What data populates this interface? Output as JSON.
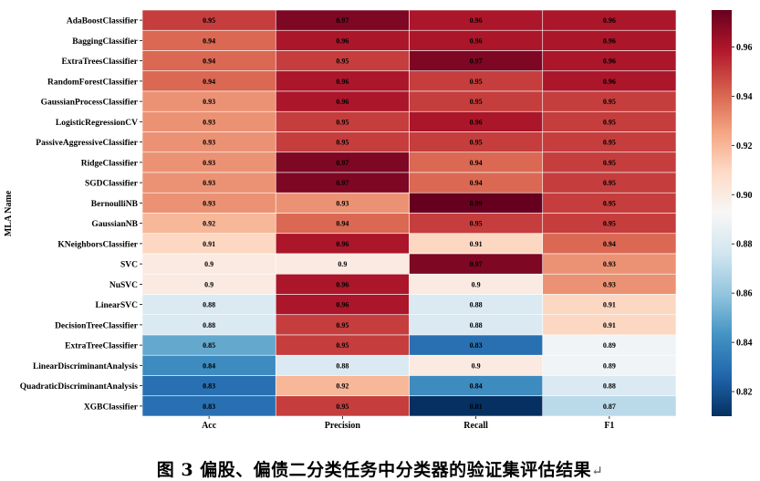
{
  "chart_data": {
    "type": "heatmap",
    "ylabel": "MLA Name",
    "xlabel": "",
    "columns": [
      "Acc",
      "Precision",
      "Recall",
      "F1"
    ],
    "rows": [
      "AdaBoostClassifier",
      "BaggingClassifier",
      "ExtraTreesClassifier",
      "RandomForestClassifier",
      "GaussianProcessClassifier",
      "LogisticRegressionCV",
      "PassiveAggressiveClassifier",
      "RidgeClassifier",
      "SGDClassifier",
      "BernoulliNB",
      "GaussianNB",
      "KNeighborsClassifier",
      "SVC",
      "NuSVC",
      "LinearSVC",
      "DecisionTreeClassifier",
      "ExtraTreeClassifier",
      "LinearDiscriminantAnalysis",
      "QuadraticDiscriminantAnalysis",
      "XGBClassifier"
    ],
    "values": [
      [
        0.95,
        0.97,
        0.96,
        0.96
      ],
      [
        0.94,
        0.96,
        0.96,
        0.96
      ],
      [
        0.94,
        0.95,
        0.97,
        0.96
      ],
      [
        0.94,
        0.96,
        0.95,
        0.96
      ],
      [
        0.93,
        0.96,
        0.95,
        0.95
      ],
      [
        0.93,
        0.95,
        0.96,
        0.95
      ],
      [
        0.93,
        0.95,
        0.95,
        0.95
      ],
      [
        0.93,
        0.97,
        0.94,
        0.95
      ],
      [
        0.93,
        0.97,
        0.94,
        0.95
      ],
      [
        0.93,
        0.93,
        0.99,
        0.95
      ],
      [
        0.92,
        0.94,
        0.95,
        0.95
      ],
      [
        0.91,
        0.96,
        0.91,
        0.94
      ],
      [
        0.9,
        0.9,
        0.97,
        0.93
      ],
      [
        0.9,
        0.96,
        0.9,
        0.93
      ],
      [
        0.88,
        0.96,
        0.88,
        0.91
      ],
      [
        0.88,
        0.95,
        0.88,
        0.91
      ],
      [
        0.85,
        0.95,
        0.83,
        0.89
      ],
      [
        0.84,
        0.88,
        0.9,
        0.89
      ],
      [
        0.83,
        0.92,
        0.84,
        0.88
      ],
      [
        0.83,
        0.95,
        0.81,
        0.87
      ]
    ],
    "colorbar": {
      "range": [
        0.81,
        0.975
      ],
      "ticks": [
        0.82,
        0.84,
        0.86,
        0.88,
        0.9,
        0.92,
        0.94,
        0.96
      ],
      "colormap": "RdBu_r"
    },
    "colormap_stops": [
      "#053061",
      "#2166ac",
      "#4393c3",
      "#92c5de",
      "#d1e5f0",
      "#f7f7f7",
      "#fddbc7",
      "#f4a582",
      "#d6604d",
      "#b2182b",
      "#67001f"
    ]
  },
  "caption": {
    "text": "图 3  偏股、偏债二分类任务中分类器的验证集评估结果",
    "return_mark": "↵"
  }
}
